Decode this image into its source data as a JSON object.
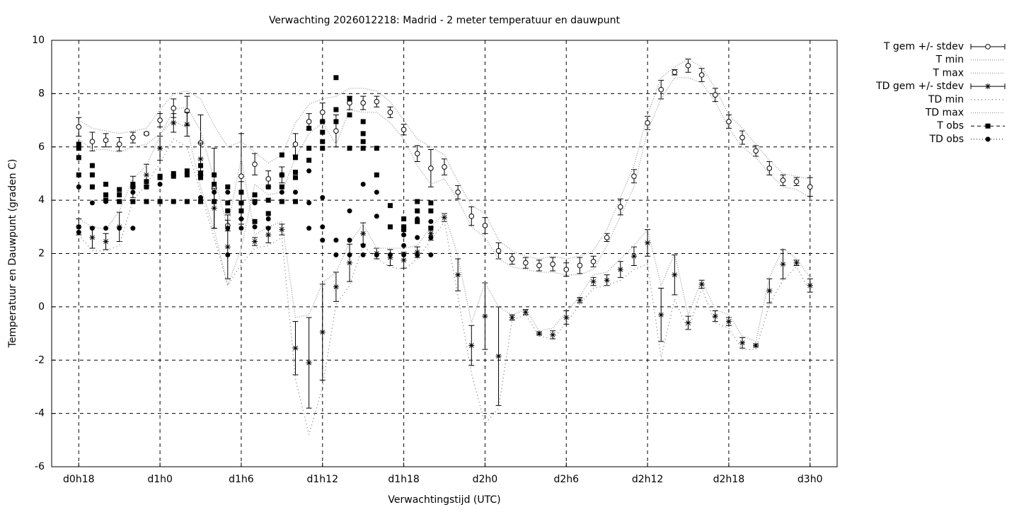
{
  "chart_data": {
    "type": "line",
    "title": "Verwachting 2026012218: Madrid - 2 meter temperatuur en dauwpunt",
    "xlabel": "Verwachtingstijd (UTC)",
    "ylabel": "Temperatuur en Dauwpunt (graden C)",
    "xlim": [
      -2,
      56
    ],
    "xticks": [
      {
        "value": 0,
        "label": "d0h18"
      },
      {
        "value": 6,
        "label": "d1h0"
      },
      {
        "value": 12,
        "label": "d1h6"
      },
      {
        "value": 18,
        "label": "d1h12"
      },
      {
        "value": 24,
        "label": "d1h18"
      },
      {
        "value": 30,
        "label": "d2h0"
      },
      {
        "value": 36,
        "label": "d2h6"
      },
      {
        "value": 42,
        "label": "d2h12"
      },
      {
        "value": 48,
        "label": "d2h18"
      },
      {
        "value": 54,
        "label": "d3h0"
      }
    ],
    "ylim": [
      -6,
      10
    ],
    "yticks": [
      -6,
      -4,
      -2,
      0,
      2,
      4,
      6,
      8,
      10
    ],
    "grid": true,
    "legend": "outside-right",
    "x": [
      0,
      1,
      2,
      3,
      4,
      5,
      6,
      7,
      8,
      9,
      10,
      11,
      12,
      13,
      14,
      15,
      16,
      17,
      18,
      19,
      20,
      21,
      22,
      23,
      24,
      25,
      26,
      27,
      28,
      29,
      30,
      31,
      32,
      33,
      34,
      35,
      36,
      37,
      38,
      39,
      40,
      41,
      42,
      43,
      44,
      45,
      46,
      47,
      48,
      49,
      50,
      51,
      52,
      53,
      54
    ],
    "series": [
      {
        "name": "T gem +/- stdev",
        "style": "errorbars",
        "marker": "circle",
        "color": "#000000",
        "values": [
          6.75,
          6.2,
          6.25,
          6.1,
          6.35,
          6.5,
          7.0,
          7.45,
          7.35,
          6.15,
          4.45,
          3.05,
          4.9,
          5.35,
          4.8,
          4.95,
          6.1,
          6.95,
          7.3,
          6.6,
          7.65,
          7.65,
          7.7,
          7.3,
          6.65,
          5.75,
          5.2,
          5.25,
          4.3,
          3.4,
          3.05,
          2.1,
          1.8,
          1.65,
          1.55,
          1.6,
          1.4,
          1.55,
          1.7,
          2.6,
          3.75,
          4.9,
          6.9,
          8.15,
          8.8,
          9.05,
          8.7,
          7.95,
          6.95,
          6.35,
          5.85,
          5.2,
          4.75,
          4.7,
          4.5
        ],
        "errors": [
          0.35,
          0.35,
          0.25,
          0.25,
          0.2,
          0.05,
          0.25,
          0.35,
          0.55,
          1.05,
          1.5,
          0.2,
          1.6,
          0.4,
          0.3,
          0.3,
          0.4,
          0.3,
          0.35,
          0.6,
          0.25,
          0.25,
          0.2,
          0.2,
          0.2,
          0.3,
          0.7,
          0.3,
          0.25,
          0.35,
          0.3,
          0.3,
          0.2,
          0.2,
          0.2,
          0.25,
          0.25,
          0.3,
          0.2,
          0.15,
          0.3,
          0.25,
          0.25,
          0.35,
          0.1,
          0.25,
          0.25,
          0.25,
          0.25,
          0.25,
          0.2,
          0.25,
          0.2,
          0.15,
          0.35
        ]
      },
      {
        "name": "T min",
        "style": "line",
        "dash": "1,2",
        "color": "#999999",
        "values": [
          6.3,
          5.9,
          5.9,
          5.8,
          6.0,
          6.1,
          6.5,
          7.0,
          6.7,
          4.5,
          2.9,
          0.8,
          2.2,
          4.6,
          4.2,
          4.3,
          5.6,
          6.5,
          6.9,
          6.1,
          7.4,
          7.3,
          7.3,
          6.9,
          6.3,
          5.3,
          4.6,
          4.8,
          4.0,
          3.0,
          2.6,
          1.8,
          1.5,
          1.4,
          1.3,
          1.3,
          1.2,
          1.2,
          1.4,
          2.3,
          3.4,
          4.5,
          6.6,
          7.8,
          8.6,
          8.6,
          8.4,
          7.7,
          6.7,
          6.0,
          5.6,
          5.0,
          4.5,
          4.4,
          4.1
        ]
      },
      {
        "name": "T max",
        "style": "line",
        "dash": "1,2",
        "color": "#999999",
        "values": [
          7.0,
          6.7,
          6.6,
          6.5,
          6.6,
          6.7,
          7.4,
          8.0,
          8.1,
          7.8,
          6.8,
          6.0,
          6.2,
          5.8,
          5.4,
          5.7,
          6.9,
          7.6,
          7.8,
          7.9,
          8.2,
          8.2,
          8.1,
          7.7,
          7.0,
          6.3,
          6.0,
          5.7,
          4.7,
          3.8,
          3.5,
          2.5,
          2.1,
          1.9,
          1.8,
          1.9,
          1.8,
          1.9,
          2.1,
          2.9,
          4.1,
          5.3,
          7.2,
          8.6,
          9.0,
          9.3,
          9.0,
          8.2,
          7.2,
          6.7,
          6.1,
          5.5,
          5.0,
          4.9,
          4.8
        ]
      },
      {
        "name": "TD gem +/- stdev",
        "style": "errorbars",
        "marker": "star",
        "color": "#000000",
        "values": [
          3.0,
          2.6,
          2.45,
          3.0,
          4.5,
          4.95,
          5.95,
          6.9,
          6.85,
          5.55,
          3.7,
          2.25,
          3.9,
          2.45,
          2.7,
          2.9,
          -1.55,
          -2.1,
          -0.95,
          0.75,
          1.65,
          2.75,
          2.0,
          1.85,
          1.75,
          2.05,
          2.75,
          3.35,
          1.2,
          -1.45,
          -0.35,
          -1.85,
          -0.4,
          -0.2,
          -1.0,
          -1.05,
          -0.4,
          0.25,
          0.95,
          1.0,
          1.4,
          1.9,
          2.4,
          -0.3,
          1.2,
          -0.6,
          0.85,
          -0.35,
          -0.55,
          -1.35,
          -1.45,
          0.6,
          1.6,
          1.65,
          0.8
        ],
        "errors": [
          0.3,
          0.4,
          0.3,
          0.55,
          0.4,
          0.4,
          0.45,
          0.35,
          0.45,
          0.6,
          0.75,
          1.2,
          0.8,
          0.15,
          0.3,
          0.2,
          1.0,
          1.7,
          1.8,
          0.55,
          0.7,
          0.4,
          0.2,
          0.3,
          0.3,
          0.2,
          0.25,
          0.15,
          0.6,
          0.75,
          1.25,
          1.85,
          0.1,
          0.1,
          0.05,
          0.15,
          0.25,
          0.1,
          0.15,
          0.2,
          0.3,
          0.35,
          0.5,
          1.0,
          0.75,
          0.25,
          0.15,
          0.2,
          0.15,
          0.2,
          0.05,
          0.45,
          0.55,
          0.1,
          0.25
        ]
      },
      {
        "name": "TD min",
        "style": "line",
        "dash": "1,4",
        "color": "#777777",
        "values": [
          2.7,
          2.1,
          2.1,
          2.3,
          4.0,
          4.6,
          5.4,
          6.3,
          6.0,
          4.3,
          2.6,
          0.8,
          1.6,
          2.2,
          2.3,
          2.6,
          -2.7,
          -4.8,
          -3.0,
          0.1,
          0.8,
          2.3,
          1.8,
          1.5,
          1.4,
          1.8,
          2.5,
          3.2,
          0.4,
          -2.5,
          -4.4,
          -3.8,
          -0.5,
          -0.3,
          -1.1,
          -1.2,
          -0.6,
          0.1,
          0.7,
          0.8,
          1.0,
          1.4,
          1.6,
          -1.9,
          0.3,
          -0.9,
          0.7,
          -0.6,
          -0.8,
          -1.6,
          -1.6,
          0.1,
          1.0,
          1.5,
          0.6
        ]
      },
      {
        "name": "TD max",
        "style": "line",
        "dash": "1,2",
        "color": "#999999",
        "values": [
          3.3,
          3.0,
          2.9,
          3.6,
          4.8,
          5.3,
          6.4,
          7.4,
          7.5,
          6.6,
          4.8,
          3.0,
          5.6,
          2.7,
          3.0,
          3.2,
          -0.4,
          -0.3,
          0.9,
          1.3,
          2.4,
          3.1,
          2.2,
          2.2,
          2.2,
          2.3,
          3.0,
          3.5,
          1.9,
          -0.6,
          0.9,
          0.0,
          -0.3,
          -0.1,
          -0.9,
          -0.8,
          -0.2,
          0.4,
          1.2,
          1.3,
          1.8,
          2.3,
          2.9,
          0.8,
          2.0,
          -0.3,
          1.0,
          -0.1,
          -0.3,
          -1.1,
          -1.3,
          1.1,
          2.2,
          1.8,
          1.1
        ]
      },
      {
        "name": "T obs",
        "style": "points",
        "marker": "square",
        "dash": "5,4",
        "color": "#000000",
        "x": [
          0,
          0,
          0,
          0,
          1,
          1,
          1,
          2,
          2,
          2,
          3,
          3,
          3,
          4,
          4,
          4,
          5,
          5,
          5,
          6,
          6,
          6,
          7,
          7,
          7,
          8,
          8,
          8,
          9,
          9,
          9,
          9,
          10,
          10,
          10,
          11,
          11,
          11,
          12,
          12,
          12,
          13,
          13,
          13,
          14,
          14,
          14,
          15,
          15,
          15,
          15,
          16,
          16,
          16,
          16,
          17,
          17,
          17,
          18,
          18,
          18,
          18,
          19,
          19,
          19,
          20,
          20,
          20,
          21,
          21,
          21,
          21,
          22,
          22,
          23,
          23,
          24,
          24,
          24,
          25,
          25,
          25,
          26,
          26,
          26
        ],
        "values": [
          6.1,
          5.95,
          5.6,
          4.95,
          5.3,
          4.95,
          4.5,
          4.6,
          4.2,
          4.0,
          4.4,
          4.2,
          3.95,
          4.6,
          4.5,
          3.95,
          4.7,
          4.5,
          3.95,
          4.9,
          4.85,
          3.95,
          5.0,
          4.9,
          3.95,
          5.1,
          4.95,
          3.95,
          5.3,
          5.0,
          4.85,
          3.95,
          4.95,
          4.6,
          3.95,
          4.5,
          3.9,
          3.6,
          4.3,
          3.9,
          3.6,
          4.2,
          3.95,
          3.2,
          4.5,
          4.0,
          3.5,
          5.7,
          4.95,
          4.5,
          3.95,
          5.6,
          5.05,
          4.85,
          3.95,
          6.7,
          5.95,
          5.5,
          6.95,
          6.55,
          6.2,
          5.95,
          8.6,
          7.4,
          6.95,
          7.8,
          7.2,
          5.95,
          6.95,
          6.5,
          6.2,
          5.95,
          5.95,
          4.95,
          3.8,
          3.0,
          3.3,
          3.0,
          2.9,
          3.95,
          3.6,
          3.2,
          3.9,
          3.6,
          2.95
        ]
      },
      {
        "name": "TD obs",
        "style": "points",
        "marker": "dot",
        "dash": "1,3",
        "color": "#000000",
        "x": [
          0,
          0,
          0,
          1,
          1,
          1,
          2,
          2,
          3,
          3,
          4,
          4,
          5,
          6,
          6,
          7,
          8,
          9,
          9,
          10,
          10,
          11,
          11,
          11,
          11,
          12,
          12,
          13,
          13,
          14,
          14,
          15,
          15,
          16,
          16,
          17,
          17,
          17,
          18,
          18,
          18,
          19,
          19,
          20,
          20,
          20,
          21,
          21,
          21,
          22,
          22,
          22,
          23,
          24,
          24,
          24,
          24,
          25,
          25,
          25,
          26,
          26,
          26
        ],
        "values": [
          4.5,
          3.0,
          2.8,
          4.5,
          3.9,
          2.95,
          3.95,
          2.95,
          3.95,
          2.95,
          4.3,
          2.95,
          4.5,
          4.6,
          3.95,
          3.95,
          3.95,
          4.1,
          3.95,
          4.3,
          3.95,
          4.3,
          3.6,
          2.95,
          1.95,
          3.3,
          2.95,
          3.9,
          3.0,
          3.3,
          2.95,
          4.3,
          3.95,
          4.3,
          3.95,
          5.1,
          3.9,
          2.95,
          4.1,
          3.0,
          2.5,
          2.5,
          1.95,
          3.6,
          2.5,
          1.95,
          4.6,
          2.3,
          1.95,
          4.3,
          3.4,
          1.95,
          1.95,
          3.0,
          2.7,
          2.3,
          1.95,
          3.3,
          2.6,
          1.95,
          3.2,
          2.6,
          1.95
        ]
      }
    ]
  }
}
